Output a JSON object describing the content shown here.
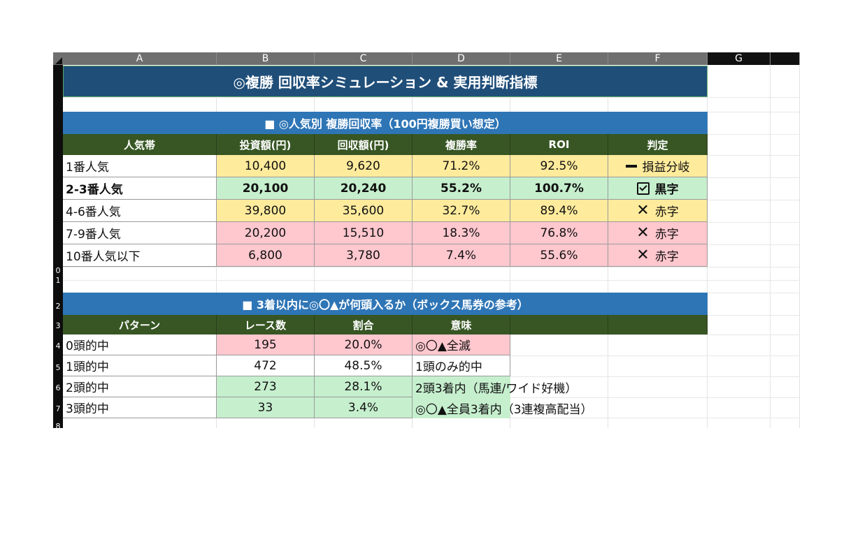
{
  "columns": [
    "A",
    "B",
    "C",
    "D",
    "E",
    "F",
    "G"
  ],
  "row_numbers": [
    "0",
    "1",
    "2",
    "3",
    "4",
    "5",
    "6",
    "7",
    "8"
  ],
  "title": "◎複勝 回収率シミュレーション & 実用判断指標",
  "section1": {
    "heading": "■ ◎人気別 複勝回収率（100円複勝買い想定）",
    "headers": [
      "人気帯",
      "投資額(円)",
      "回収額(円)",
      "複勝率",
      "ROI",
      "判定"
    ],
    "rows": [
      {
        "label": "1番人気",
        "invest": "10,400",
        "ret": "9,620",
        "rate": "71.2%",
        "roi": "92.5%",
        "icon": "minus-icon",
        "verdict": "損益分岐",
        "color": "yellow",
        "bold": false
      },
      {
        "label": "2-3番人気",
        "invest": "20,100",
        "ret": "20,240",
        "rate": "55.2%",
        "roi": "100.7%",
        "icon": "checkbox-icon",
        "verdict": "黒字",
        "color": "green",
        "bold": true
      },
      {
        "label": "4-6番人気",
        "invest": "39,800",
        "ret": "35,600",
        "rate": "32.7%",
        "roi": "89.4%",
        "icon": "cross-icon",
        "verdict": "赤字",
        "color": "yellow",
        "bold": false
      },
      {
        "label": "7-9番人気",
        "invest": "20,200",
        "ret": "15,510",
        "rate": "18.3%",
        "roi": "76.8%",
        "icon": "cross-icon",
        "verdict": "赤字",
        "color": "pink",
        "bold": false
      },
      {
        "label": "10番人気以下",
        "invest": "6,800",
        "ret": "3,780",
        "rate": "7.4%",
        "roi": "55.6%",
        "icon": "cross-icon",
        "verdict": "赤字",
        "color": "pink",
        "bold": false
      }
    ]
  },
  "section2": {
    "heading": "■ 3着以内に◎〇▲が何頭入るか（ボックス馬券の参考）",
    "headers": [
      "パターン",
      "レース数",
      "割合",
      "意味",
      "",
      ""
    ],
    "rows": [
      {
        "label": "0頭的中",
        "count": "195",
        "pct": "20.0%",
        "meaning": "◎〇▲全滅",
        "color": "pink"
      },
      {
        "label": "1頭的中",
        "count": "472",
        "pct": "48.5%",
        "meaning": "1頭のみ的中",
        "color": "white"
      },
      {
        "label": "2頭的中",
        "count": "273",
        "pct": "28.1%",
        "meaning": "2頭3着内（馬連/ワイド好機）",
        "color": "green"
      },
      {
        "label": "3頭的中",
        "count": "33",
        "pct": "3.4%",
        "meaning": "◎〇▲全員3着内（3連複高配当）",
        "color": "green"
      }
    ]
  },
  "colors": {
    "title_bg": "#1f4e79",
    "band_bg": "#2e75b6",
    "header_bg": "#375623",
    "yellow": "#ffeb9c",
    "green": "#c6efce",
    "pink": "#ffc7ce"
  }
}
